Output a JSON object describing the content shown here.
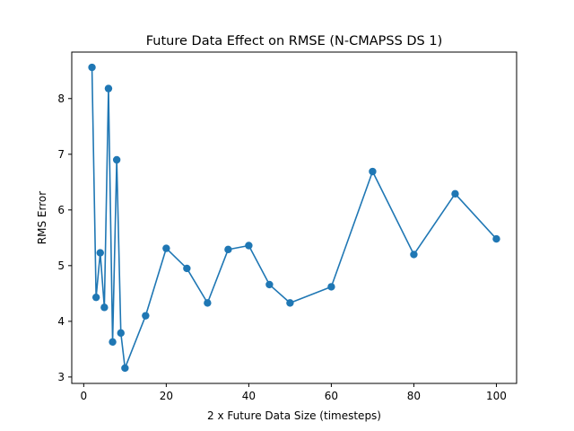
{
  "chart_data": {
    "type": "line",
    "title": "Future Data Effect on RMSE (N-CMAPSS DS 1)",
    "xlabel": "2 x Future Data Size (timesteps)",
    "ylabel": "RMS Error",
    "xlim": [
      -2.9,
      104.9
    ],
    "ylim": [
      2.885,
      8.835
    ],
    "xticks": [
      0,
      20,
      40,
      60,
      80,
      100
    ],
    "yticks": [
      3,
      4,
      5,
      6,
      7,
      8
    ],
    "grid": false,
    "legend": "none",
    "series": [
      {
        "color": "#1f77b4",
        "marker": "circle",
        "x": [
          2,
          3,
          4,
          5,
          6,
          7,
          8,
          9,
          10,
          15,
          20,
          25,
          30,
          35,
          40,
          45,
          50,
          60,
          70,
          80,
          90,
          100
        ],
        "y": [
          8.56,
          4.43,
          5.23,
          4.25,
          8.18,
          3.63,
          6.9,
          3.79,
          3.16,
          4.1,
          5.31,
          4.95,
          4.33,
          5.29,
          5.36,
          4.66,
          4.33,
          4.62,
          6.69,
          5.2,
          6.29,
          5.48
        ]
      }
    ]
  }
}
